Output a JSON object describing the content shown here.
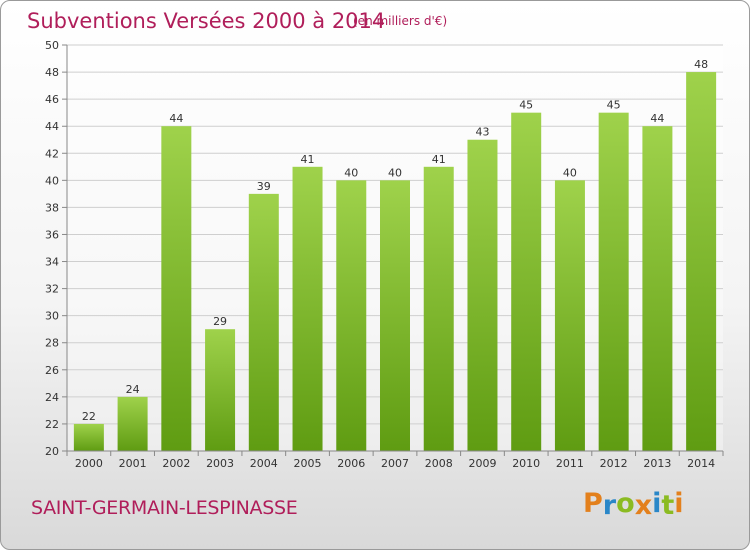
{
  "header": {
    "title": "Subventions Versées 2000 à 2014",
    "unit": "(en milliers d'€)"
  },
  "footer": {
    "commune": "SAINT-GERMAIN-LESPINASSE",
    "logo": "Proxiti"
  },
  "colors": {
    "accent": "#b01e5a",
    "bar_top": "#9fd24b",
    "bar_bottom": "#5f9c12",
    "logo_letters": [
      "#e3801c",
      "#2a87c8",
      "#8bbb22",
      "#e3801c",
      "#2a87c8",
      "#8bbb22",
      "#e3801c"
    ]
  },
  "chart_data": {
    "type": "bar",
    "title": "Subventions Versées 2000 à 2014",
    "unit": "(en milliers d'€)",
    "categories": [
      "2000",
      "2001",
      "2002",
      "2003",
      "2004",
      "2005",
      "2006",
      "2007",
      "2008",
      "2009",
      "2010",
      "2011",
      "2012",
      "2013",
      "2014"
    ],
    "values": [
      22,
      24,
      44,
      29,
      39,
      41,
      40,
      40,
      41,
      43,
      45,
      40,
      45,
      44,
      48
    ],
    "ylim": [
      20,
      50
    ],
    "yticks": [
      20,
      22,
      24,
      26,
      28,
      30,
      32,
      34,
      36,
      38,
      40,
      42,
      44,
      46,
      48,
      50
    ],
    "grid": true,
    "data_labels": true
  }
}
